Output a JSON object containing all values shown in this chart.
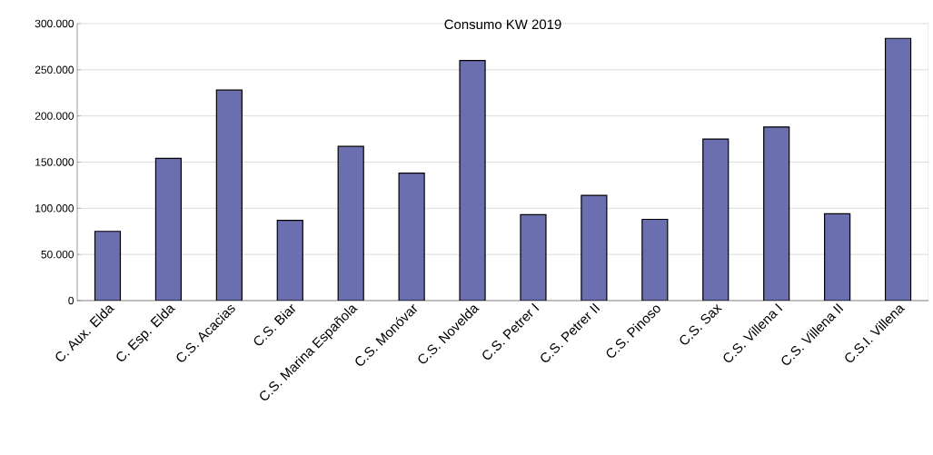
{
  "chart_data": {
    "type": "bar",
    "title": "Consumo KW  2019",
    "categories": [
      "C. Aux. Elda",
      "C. Esp. Elda",
      "C.S. Acacias",
      "C.S. Biar",
      "C.S. Marina Española",
      "C.S. Monóvar",
      "C.S. Novelda",
      "C.S. Petrer I",
      "C.S. Petrer II",
      "C.S. Pinoso",
      "C.S. Sax",
      "C.S. Villena I",
      "C.S. Villena II",
      "C.S.I. Villena"
    ],
    "values": [
      75000,
      154000,
      228000,
      87000,
      167000,
      138000,
      260000,
      93000,
      114000,
      88000,
      175000,
      188000,
      94000,
      284000
    ],
    "color": "#6b6fb0",
    "ylim": [
      0,
      300000
    ],
    "yticks": [
      {
        "value": 0,
        "label": "0"
      },
      {
        "value": 50000,
        "label": "50.000"
      },
      {
        "value": 100000,
        "label": "100.000"
      },
      {
        "value": 150000,
        "label": "150.000"
      },
      {
        "value": 200000,
        "label": "200.000"
      },
      {
        "value": 250000,
        "label": "250.000"
      },
      {
        "value": 300000,
        "label": "300.000"
      }
    ],
    "grid": "y"
  }
}
